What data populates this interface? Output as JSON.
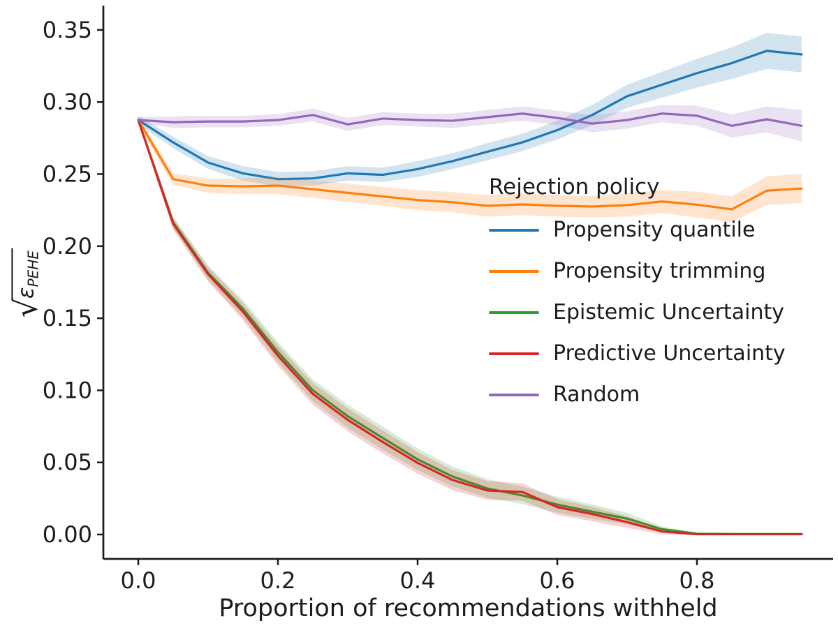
{
  "figure": {
    "background": "#ffffff"
  },
  "legend": {
    "title": "Rejection policy"
  },
  "chart_data": {
    "type": "line",
    "title": "",
    "xlabel": "Proportion of recommendations withheld",
    "ylabel": {
      "radical": "√",
      "symbol": "ε",
      "subscript": "PEHE"
    },
    "grid": false,
    "legend_position": "center-right",
    "xlim": [
      -0.05,
      0.994
    ],
    "ylim": [
      -0.017,
      0.367
    ],
    "x_ticks": {
      "values": [
        0.0,
        0.2,
        0.4,
        0.6,
        0.8
      ],
      "labels": [
        "0.0",
        "0.2",
        "0.4",
        "0.6",
        "0.8"
      ]
    },
    "y_ticks": {
      "values": [
        0.0,
        0.05,
        0.1,
        0.15,
        0.2,
        0.25,
        0.3,
        0.35
      ],
      "labels": [
        "0.00",
        "0.05",
        "0.10",
        "0.15",
        "0.20",
        "0.25",
        "0.30",
        "0.35"
      ]
    },
    "band_opacity": 0.2,
    "x": [
      0.0,
      0.05,
      0.1,
      0.15,
      0.2,
      0.25,
      0.3,
      0.35,
      0.4,
      0.45,
      0.5,
      0.55,
      0.6,
      0.65,
      0.7,
      0.75,
      0.8,
      0.85,
      0.9,
      0.95
    ],
    "series": [
      {
        "name": "Propensity quantile",
        "color": "#1f77b4",
        "values": [
          0.2875,
          0.272,
          0.258,
          0.2505,
          0.2465,
          0.247,
          0.2505,
          0.2495,
          0.2535,
          0.259,
          0.2655,
          0.272,
          0.2805,
          0.291,
          0.304,
          0.312,
          0.32,
          0.327,
          0.3355,
          0.333
        ],
        "band": [
          0.003,
          0.004,
          0.0045,
          0.005,
          0.005,
          0.005,
          0.005,
          0.005,
          0.0055,
          0.0055,
          0.006,
          0.006,
          0.0065,
          0.007,
          0.008,
          0.009,
          0.01,
          0.011,
          0.0125,
          0.0125
        ]
      },
      {
        "name": "Propensity trimming",
        "color": "#ff7f0e",
        "values": [
          0.2875,
          0.2465,
          0.242,
          0.2415,
          0.242,
          0.2395,
          0.237,
          0.2345,
          0.232,
          0.2305,
          0.228,
          0.229,
          0.228,
          0.2275,
          0.2285,
          0.231,
          0.2288,
          0.2256,
          0.2385,
          0.24
        ],
        "band": [
          0.003,
          0.004,
          0.005,
          0.0055,
          0.006,
          0.006,
          0.0065,
          0.0065,
          0.007,
          0.007,
          0.0075,
          0.0075,
          0.0075,
          0.0075,
          0.008,
          0.008,
          0.009,
          0.009,
          0.01,
          0.01
        ]
      },
      {
        "name": "Epistemic Uncertainty",
        "color": "#2ca02c",
        "values": [
          0.2875,
          0.2165,
          0.1815,
          0.1565,
          0.1265,
          0.1,
          0.082,
          0.067,
          0.0521,
          0.0402,
          0.0319,
          0.0271,
          0.0207,
          0.0158,
          0.011,
          0.0037,
          0.0005,
          0.0003,
          0.0003,
          0.0003
        ],
        "band": [
          0.002,
          0.004,
          0.005,
          0.006,
          0.007,
          0.0075,
          0.008,
          0.008,
          0.0075,
          0.007,
          0.0065,
          0.006,
          0.0055,
          0.005,
          0.004,
          0.002,
          0.0008,
          0.0008,
          0.0008,
          0.0008
        ]
      },
      {
        "name": "Predictive Uncertainty",
        "color": "#d62728",
        "values": [
          0.2875,
          0.2155,
          0.1805,
          0.1545,
          0.124,
          0.0975,
          0.0795,
          0.0642,
          0.0497,
          0.0378,
          0.0305,
          0.0295,
          0.019,
          0.0142,
          0.0086,
          0.0021,
          0.0002,
          0.0002,
          0.0002,
          0.0002
        ],
        "band": [
          0.002,
          0.004,
          0.005,
          0.006,
          0.007,
          0.0075,
          0.008,
          0.008,
          0.0075,
          0.007,
          0.0065,
          0.006,
          0.0055,
          0.005,
          0.004,
          0.002,
          0.0008,
          0.0008,
          0.0008,
          0.0008
        ]
      },
      {
        "name": "Random",
        "color": "#9467bd",
        "values": [
          0.2875,
          0.286,
          0.2865,
          0.2865,
          0.2875,
          0.291,
          0.2845,
          0.2885,
          0.2875,
          0.287,
          0.2895,
          0.292,
          0.289,
          0.285,
          0.2875,
          0.292,
          0.2905,
          0.2835,
          0.288,
          0.2835
        ],
        "band": [
          0.002,
          0.004,
          0.004,
          0.004,
          0.004,
          0.0045,
          0.0045,
          0.0045,
          0.0045,
          0.005,
          0.005,
          0.005,
          0.005,
          0.006,
          0.006,
          0.006,
          0.007,
          0.008,
          0.009,
          0.011
        ]
      }
    ]
  }
}
